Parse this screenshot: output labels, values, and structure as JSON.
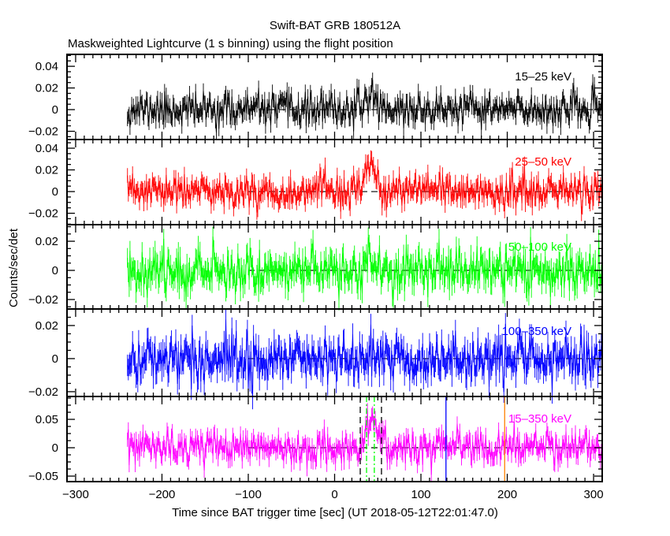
{
  "chart_data": {
    "type": "line",
    "title": "Swift-BAT GRB 180512A",
    "subtitle": "Maskweighted Lightcurve (1 s binning) using the flight position",
    "xlabel": "Time since BAT trigger time [sec] (UT 2018-05-12T22:01:47.0)",
    "ylabel": "Counts/sec/det",
    "xlim": [
      -310,
      310
    ],
    "xticks": [
      -300,
      -200,
      -100,
      0,
      100,
      200,
      300
    ],
    "xtick_labels": [
      "−300",
      "−200",
      "−100",
      "0",
      "100",
      "200",
      "300"
    ],
    "data_time_range": [
      -240,
      310
    ],
    "bin_size_sec": 1,
    "zero_line_range": [
      -100,
      310
    ],
    "grid": false,
    "panels": [
      {
        "label": "15–25 keV",
        "color": "#000000",
        "ylim": [
          -0.0276,
          0.051
        ],
        "yticks": [
          -0.02,
          0,
          0.02,
          0.04
        ],
        "ytick_labels": [
          "−0.02",
          "0",
          "0.02",
          "0.04"
        ],
        "noise_sigma": 0.0075,
        "peak": {
          "start": 28,
          "end": 60,
          "amplitude": 0.013
        },
        "seed": 11
      },
      {
        "label": "25–50 keV",
        "color": "#ff0000",
        "ylim": [
          -0.0305,
          0.048
        ],
        "yticks": [
          -0.02,
          0,
          0.02,
          0.04
        ],
        "ytick_labels": [
          "−0.02",
          "0",
          "0.02",
          "0.04"
        ],
        "noise_sigma": 0.0075,
        "peak": {
          "start": 28,
          "end": 58,
          "amplitude": 0.02
        },
        "seed": 23
      },
      {
        "label": "50–100 keV",
        "color": "#00ff00",
        "ylim": [
          -0.0265,
          0.0314
        ],
        "yticks": [
          -0.02,
          0,
          0.02
        ],
        "ytick_labels": [
          "−0.02",
          "0",
          "0.02"
        ],
        "noise_sigma": 0.0075,
        "peak": {
          "start": 30,
          "end": 55,
          "amplitude": 0.006
        },
        "seed": 37
      },
      {
        "label": "100–350 keV",
        "color": "#0000ff",
        "ylim": [
          -0.0229,
          0.03
        ],
        "yticks": [
          -0.02,
          0,
          0.02
        ],
        "ytick_labels": [
          "−0.02",
          "0",
          "0.02"
        ],
        "noise_sigma": 0.0072,
        "peak": {
          "start": 30,
          "end": 55,
          "amplitude": 0.0
        },
        "seed": 41
      },
      {
        "label": "15–350 keV",
        "color": "#ff00ff",
        "ylim": [
          -0.0597,
          0.0903
        ],
        "yticks": [
          -0.05,
          0,
          0.05
        ],
        "ytick_labels": [
          "−0.05",
          "0",
          "0.05"
        ],
        "noise_sigma": 0.014,
        "peak": {
          "start": 28,
          "end": 60,
          "amplitude": 0.045
        },
        "seed": 53,
        "markers": [
          {
            "t": 29.7,
            "color": "#000000",
            "style": "dashed"
          },
          {
            "t": 54.3,
            "color": "#000000",
            "style": "dashed"
          },
          {
            "t": 37,
            "color": "#00ff00",
            "style": "dash-dot"
          },
          {
            "t": 46,
            "color": "#00ff00",
            "style": "dash-dot"
          },
          {
            "t": 129,
            "color": "#0000ff",
            "style": "solid"
          },
          {
            "t": 197,
            "color": "#ff8000",
            "style": "solid"
          }
        ]
      }
    ]
  }
}
